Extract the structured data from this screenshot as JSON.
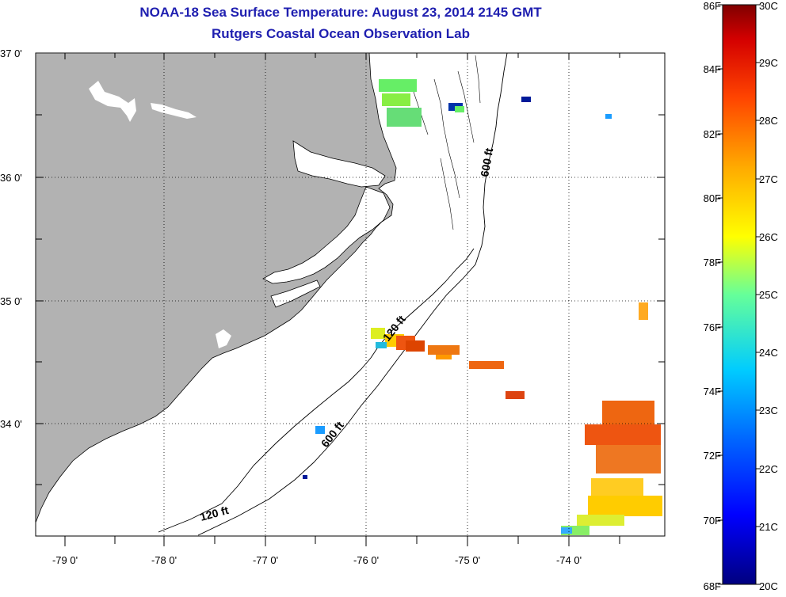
{
  "header": {
    "title": "NOAA-18 Sea Surface Temperature:  August 23, 2014 2145 GMT",
    "subtitle": "Rutgers Coastal Ocean Observation Lab"
  },
  "axes": {
    "y_labels": [
      "37 0'",
      "36 0'",
      "35 0'",
      "34 0'"
    ],
    "x_labels": [
      "-79 0'",
      "-78 0'",
      "-77 0'",
      "-76 0'",
      "-75 0'",
      "-74 0'"
    ]
  },
  "contours": {
    "shelf_120": "120 ft",
    "slope_600": "600 ft"
  },
  "colorbar": {
    "fahrenheit_labels": [
      "86F",
      "84F",
      "82F",
      "80F",
      "78F",
      "76F",
      "74F",
      "72F",
      "70F",
      "68F"
    ],
    "celsius_labels": [
      "30C",
      "29C",
      "28C",
      "27C",
      "26C",
      "25C",
      "24C",
      "23C",
      "22C",
      "21C",
      "20C"
    ]
  },
  "colors": {
    "land": "#b2b2b2",
    "water": "#ffffff",
    "title": "#1f1fb0",
    "grid": "#000000"
  },
  "chart_data": {
    "type": "heatmap",
    "title": "NOAA-18 Sea Surface Temperature:  August 23, 2014 2145 GMT",
    "lon_range": [
      -79.3,
      -73.0
    ],
    "lat_range": [
      33.15,
      37.0
    ],
    "value_range_c": [
      20,
      30
    ],
    "value_range_f": [
      68,
      86
    ],
    "grid": true
  }
}
